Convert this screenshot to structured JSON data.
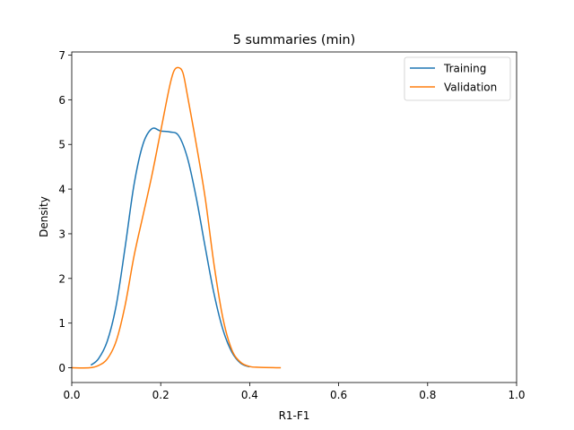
{
  "chart_data": {
    "type": "line",
    "title": "5 summaries (min)",
    "xlabel": "R1-F1",
    "ylabel": "Density",
    "xlim": [
      0.0,
      1.0
    ],
    "ylim": [
      -0.33,
      7.07
    ],
    "xticks": [
      0.0,
      0.2,
      0.4,
      0.6,
      0.8,
      1.0
    ],
    "xtick_labels": [
      "0.0",
      "0.2",
      "0.4",
      "0.6",
      "0.8",
      "1.0"
    ],
    "yticks": [
      0,
      1,
      2,
      3,
      4,
      5,
      6,
      7
    ],
    "ytick_labels": [
      "0",
      "1",
      "2",
      "3",
      "4",
      "5",
      "6",
      "7"
    ],
    "grid": false,
    "legend_position": "top-right",
    "series": [
      {
        "name": "Training",
        "color": "#1f77b4",
        "x": [
          0.043,
          0.06,
          0.08,
          0.1,
          0.12,
          0.14,
          0.16,
          0.18,
          0.2,
          0.22,
          0.24,
          0.26,
          0.28,
          0.3,
          0.32,
          0.34,
          0.36,
          0.38,
          0.4
        ],
        "y": [
          0.06,
          0.2,
          0.6,
          1.4,
          2.7,
          4.1,
          5.0,
          5.35,
          5.3,
          5.28,
          5.2,
          4.7,
          3.8,
          2.7,
          1.65,
          0.85,
          0.35,
          0.1,
          0.02
        ]
      },
      {
        "name": "Validation",
        "color": "#ff7f0e",
        "x": [
          0.0,
          0.04,
          0.06,
          0.08,
          0.1,
          0.12,
          0.14,
          0.16,
          0.18,
          0.2,
          0.22,
          0.23,
          0.24,
          0.25,
          0.26,
          0.28,
          0.3,
          0.32,
          0.34,
          0.36,
          0.38,
          0.4,
          0.42,
          0.47
        ],
        "y": [
          0.0,
          0.0,
          0.05,
          0.2,
          0.6,
          1.4,
          2.5,
          3.4,
          4.3,
          5.3,
          6.3,
          6.65,
          6.72,
          6.6,
          6.1,
          5.0,
          3.8,
          2.3,
          1.1,
          0.4,
          0.12,
          0.03,
          0.01,
          0.0
        ]
      }
    ]
  }
}
